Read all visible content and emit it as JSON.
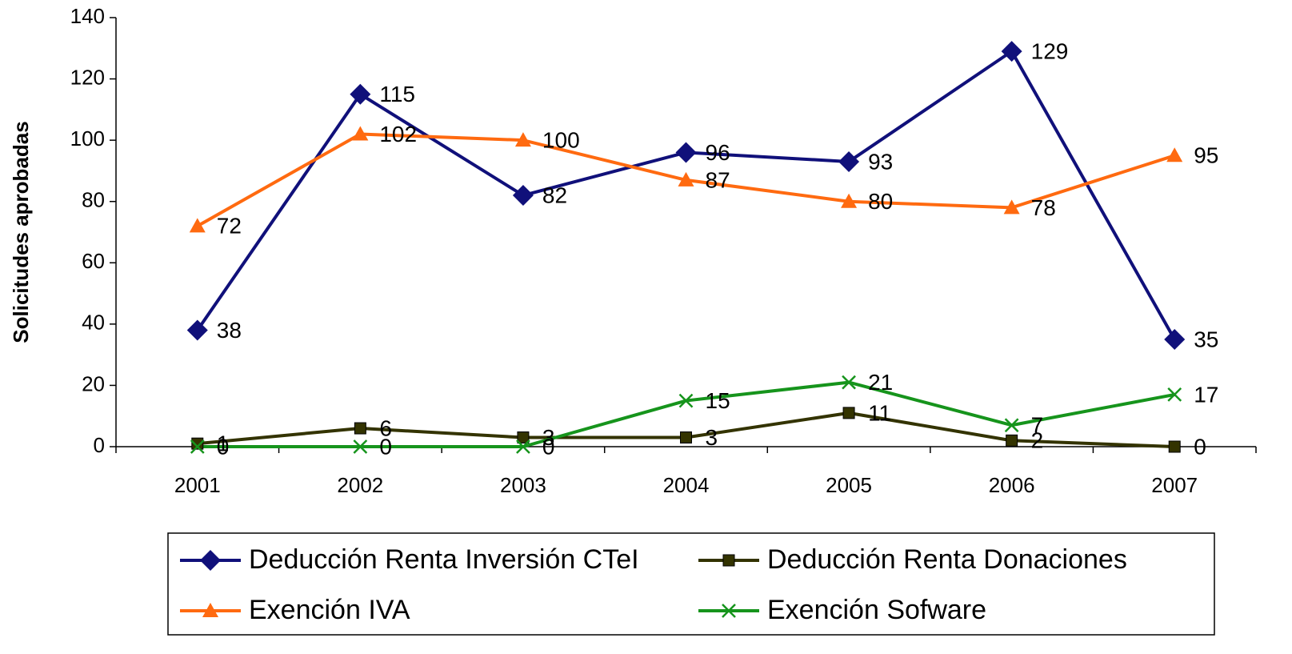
{
  "chart_data": {
    "type": "line",
    "y_label": "Solicitudes aprobadas",
    "categories": [
      "2001",
      "2002",
      "2003",
      "2004",
      "2005",
      "2006",
      "2007"
    ],
    "series": [
      {
        "name": "Deducción Renta Inversión CTeI",
        "color": "#10107a",
        "marker": "diamond",
        "values": [
          38,
          115,
          82,
          96,
          93,
          129,
          35
        ]
      },
      {
        "name": "Deducción Renta Donaciones",
        "color": "#333300",
        "marker": "square",
        "values": [
          1,
          6,
          3,
          3,
          11,
          2,
          0
        ]
      },
      {
        "name": "Exención IVA",
        "color": "#ff6a10",
        "marker": "triangle",
        "values": [
          72,
          102,
          100,
          87,
          80,
          78,
          95
        ]
      },
      {
        "name": "Exención Sofware",
        "color": "#16941c",
        "marker": "x",
        "values": [
          0,
          0,
          0,
          15,
          21,
          7,
          17
        ]
      }
    ],
    "ylim": [
      0,
      140
    ],
    "yticks": [
      0,
      20,
      40,
      60,
      80,
      100,
      120,
      140
    ],
    "grid": false,
    "legend": "bottom"
  }
}
